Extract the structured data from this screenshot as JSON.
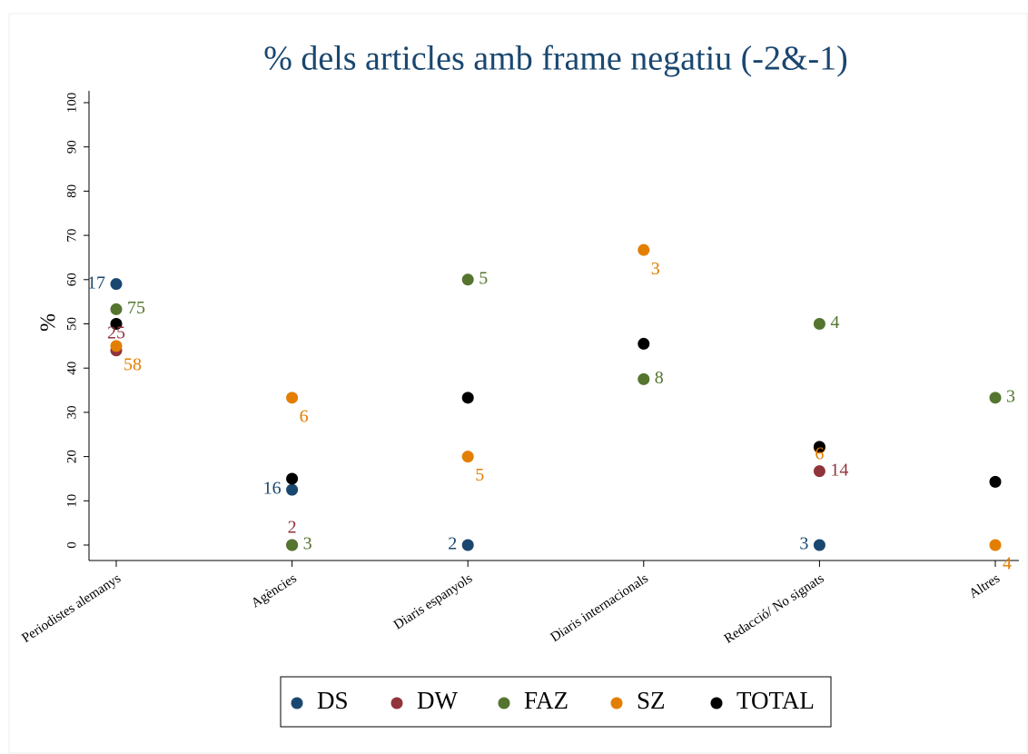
{
  "chart_data": {
    "type": "dot",
    "title": "% dels articles amb frame negatiu (-2&-1)",
    "y_label": "%",
    "categories": [
      "Periodistes alemanys",
      "Agències",
      "Diaris espanyols",
      "Diaris internacionals",
      "Redacció/ No signats",
      "Altres"
    ],
    "series": [
      {
        "name": "DS",
        "color": "#1a476f",
        "values": [
          59,
          12.5,
          0,
          null,
          0,
          null
        ],
        "counts": [
          17,
          16,
          2,
          null,
          3,
          null
        ],
        "label_pos": [
          9,
          9,
          9,
          null,
          9,
          null
        ]
      },
      {
        "name": "DW",
        "color": "#90353b",
        "values": [
          44,
          0,
          null,
          null,
          16.7,
          null
        ],
        "counts": [
          25,
          2,
          null,
          null,
          14,
          null
        ],
        "label_pos": [
          12,
          12,
          null,
          null,
          3,
          null
        ]
      },
      {
        "name": "FAZ",
        "color": "#55752f",
        "values": [
          53.3,
          0,
          60,
          37.5,
          50,
          33.3
        ],
        "counts": [
          75,
          3,
          5,
          8,
          4,
          3
        ],
        "label_pos": [
          3,
          3,
          3,
          3,
          3,
          3
        ]
      },
      {
        "name": "SZ",
        "color": "#e37e00",
        "values": [
          45,
          33.3,
          20,
          66.7,
          22,
          0
        ],
        "counts": [
          58,
          6,
          5,
          3,
          6,
          4
        ],
        "label_pos": [
          5,
          5,
          5,
          5,
          6,
          5
        ]
      },
      {
        "name": "TOTAL",
        "color": "#000000",
        "values": [
          50,
          15,
          33.3,
          45.5,
          22.2,
          14.3
        ],
        "counts": [
          null,
          null,
          null,
          null,
          null,
          null
        ],
        "label_pos": [
          null,
          null,
          null,
          null,
          null,
          null
        ]
      }
    ],
    "ylim": [
      0,
      100
    ],
    "yticks": [
      0,
      10,
      20,
      30,
      40,
      50,
      60,
      70,
      80,
      90,
      100
    ],
    "legend": "bottom"
  }
}
